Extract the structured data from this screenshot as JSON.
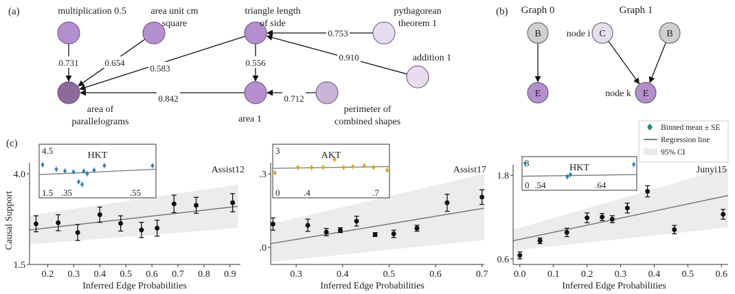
{
  "panel_labels": {
    "a": "(a)",
    "b": "(b)",
    "c": "(c)"
  },
  "graph_a": {
    "nodes": [
      {
        "id": "mult",
        "label_lines": [
          "multiplication 0.5"
        ],
        "color": "#b48fcf"
      },
      {
        "id": "area_unit",
        "label_lines": [
          "area unit cm",
          "square"
        ],
        "color": "#b48fcf"
      },
      {
        "id": "triangle",
        "label_lines": [
          "triangle length",
          "of side"
        ],
        "color": "#b48fcf"
      },
      {
        "id": "pyth",
        "label_lines": [
          "pythagorean",
          "theorem 1"
        ],
        "color": "#e8dcef"
      },
      {
        "id": "addition",
        "label_lines": [
          "addition 1"
        ],
        "color": "#e8dcef"
      },
      {
        "id": "parallelogram",
        "label_lines": [
          "area of",
          "parallelograms"
        ],
        "color": "#8c6a99"
      },
      {
        "id": "area1",
        "label_lines": [
          "area 1"
        ],
        "color": "#b48fcf"
      },
      {
        "id": "perimeter",
        "label_lines": [
          "perimeter of",
          "combined shapes"
        ],
        "color": "#c9b3d9"
      }
    ],
    "edges": [
      {
        "from": "mult",
        "to": "parallelogram",
        "weight": "0.731"
      },
      {
        "from": "area_unit",
        "to": "parallelogram",
        "weight": "0.654"
      },
      {
        "from": "triangle",
        "to": "parallelogram",
        "weight": "0.583"
      },
      {
        "from": "triangle",
        "to": "area1",
        "weight": "0.556"
      },
      {
        "from": "area1",
        "to": "parallelogram",
        "weight": "0.842"
      },
      {
        "from": "pyth",
        "to": "triangle",
        "weight": "0.753"
      },
      {
        "from": "addition",
        "to": "triangle",
        "weight": "0.910"
      },
      {
        "from": "perimeter",
        "to": "area1",
        "weight": "0.712"
      }
    ]
  },
  "graph_b": {
    "titles": [
      "Graph 0",
      "Graph 1"
    ],
    "nodes": [
      {
        "id": "g0B",
        "letter": "B",
        "color": "#cfcfcf"
      },
      {
        "id": "g0E",
        "letter": "E",
        "color": "#b48fcf"
      },
      {
        "id": "g1C",
        "letter": "C",
        "color": "#e8dcef",
        "side_label": "node i"
      },
      {
        "id": "g1B",
        "letter": "B",
        "color": "#cfcfcf"
      },
      {
        "id": "g1E",
        "letter": "E",
        "color": "#b48fcf",
        "side_label": "node k"
      }
    ],
    "edges": [
      {
        "from": "g0B",
        "to": "g0E"
      },
      {
        "from": "g1C",
        "to": "g1E"
      },
      {
        "from": "g1B",
        "to": "g1E"
      }
    ]
  },
  "legend": {
    "binned": "Binned mean ± SE",
    "regression": "Regression line",
    "ci": "95% CI",
    "marker_color": "#1a8f86"
  },
  "chart_data": [
    {
      "type": "scatter",
      "dataset": "Assist12",
      "xlabel": "Inferred Edge Probabilities",
      "ylabel": "Causal Support",
      "xticks": [
        "0.2",
        "0.3",
        "0.4",
        "0.5",
        "0.6",
        "0.7",
        "0.8",
        "0.9"
      ],
      "yticks": [
        "1.5",
        "4.0"
      ],
      "xlim": [
        0.13,
        0.94
      ],
      "ylim": [
        1.5,
        4.3
      ],
      "points": [
        {
          "x": 0.155,
          "y": 2.62,
          "se": 0.22
        },
        {
          "x": 0.24,
          "y": 2.65,
          "se": 0.22
        },
        {
          "x": 0.315,
          "y": 2.38,
          "se": 0.22
        },
        {
          "x": 0.4,
          "y": 2.87,
          "se": 0.21
        },
        {
          "x": 0.48,
          "y": 2.63,
          "se": 0.21
        },
        {
          "x": 0.56,
          "y": 2.45,
          "se": 0.21
        },
        {
          "x": 0.62,
          "y": 2.5,
          "se": 0.22
        },
        {
          "x": 0.685,
          "y": 3.17,
          "se": 0.24
        },
        {
          "x": 0.77,
          "y": 3.13,
          "se": 0.22
        },
        {
          "x": 0.91,
          "y": 3.2,
          "se": 0.25
        }
      ],
      "regression": [
        [
          0.13,
          2.45
        ],
        [
          0.93,
          3.1
        ]
      ],
      "ci_upper": [
        [
          0.13,
          2.85
        ],
        [
          0.93,
          3.7
        ]
      ],
      "ci_lower": [
        [
          0.13,
          2.05
        ],
        [
          0.93,
          2.5
        ]
      ],
      "inset": {
        "label": "HKT",
        "color": "#2d7fb3",
        "xticks": [
          ".35",
          ".55"
        ],
        "yticks": [
          "1.5",
          "4.5"
        ],
        "xlim": [
          0.27,
          0.61
        ],
        "ylim": [
          1.5,
          4.5
        ],
        "points": [
          [
            0.28,
            3.35
          ],
          [
            0.32,
            3.1
          ],
          [
            0.345,
            3.0
          ],
          [
            0.37,
            2.95
          ],
          [
            0.385,
            2.4
          ],
          [
            0.395,
            2.25
          ],
          [
            0.4,
            3.0
          ],
          [
            0.41,
            2.85
          ],
          [
            0.43,
            3.05
          ],
          [
            0.46,
            3.3
          ],
          [
            0.6,
            3.3
          ]
        ],
        "regression": [
          [
            0.27,
            2.8
          ],
          [
            0.61,
            3.1
          ]
        ]
      }
    },
    {
      "type": "scatter",
      "dataset": "Assist17",
      "xlabel": "Inferred Edge Probabilities",
      "ylabel": "",
      "xticks": [
        "0.3",
        "0.4",
        "0.5",
        "0.6",
        "0.7"
      ],
      "yticks": [
        ".0",
        ".3"
      ],
      "xlim": [
        0.245,
        0.705
      ],
      "ylim": [
        -0.07,
        0.345
      ],
      "points": [
        {
          "x": 0.25,
          "y": 0.095,
          "se": 0.025
        },
        {
          "x": 0.325,
          "y": 0.09,
          "se": 0.025
        },
        {
          "x": 0.365,
          "y": 0.062,
          "se": 0.015
        },
        {
          "x": 0.395,
          "y": 0.07,
          "se": 0.01
        },
        {
          "x": 0.43,
          "y": 0.107,
          "se": 0.02
        },
        {
          "x": 0.47,
          "y": 0.052,
          "se": 0.008
        },
        {
          "x": 0.51,
          "y": 0.055,
          "se": 0.015
        },
        {
          "x": 0.56,
          "y": 0.078,
          "se": 0.012
        },
        {
          "x": 0.625,
          "y": 0.182,
          "se": 0.035
        },
        {
          "x": 0.7,
          "y": 0.205,
          "se": 0.03
        }
      ],
      "regression": [
        [
          0.245,
          0.015
        ],
        [
          0.705,
          0.16
        ]
      ],
      "ci_upper": [
        [
          0.245,
          0.095
        ],
        [
          0.705,
          0.3
        ]
      ],
      "ci_lower": [
        [
          0.245,
          -0.06
        ],
        [
          0.705,
          0.03
        ]
      ],
      "inset": {
        "label": "AKT",
        "color": "#e0a21a",
        "xticks": [
          ".4",
          ".7"
        ],
        "yticks": [
          "0",
          "3"
        ],
        "xlim": [
          0.25,
          0.76
        ],
        "ylim": [
          0,
          3
        ],
        "points": [
          [
            0.26,
            1.4
          ],
          [
            0.36,
            1.7
          ],
          [
            0.42,
            1.7
          ],
          [
            0.47,
            1.7
          ],
          [
            0.52,
            2.15
          ],
          [
            0.56,
            1.7
          ],
          [
            0.6,
            1.75
          ],
          [
            0.65,
            1.8
          ],
          [
            0.69,
            1.7
          ],
          [
            0.75,
            1.55
          ]
        ],
        "regression": [
          [
            0.25,
            1.65
          ],
          [
            0.76,
            1.75
          ]
        ]
      }
    },
    {
      "type": "scatter",
      "dataset": "Junyi15",
      "xlabel": "Inferred Edge Probabilities",
      "ylabel": "",
      "xticks": [
        "0.0",
        "0.1",
        "0.2",
        "0.3",
        "0.4",
        "0.5",
        "0.6"
      ],
      "yticks": [
        "0.6",
        "1.8"
      ],
      "xlim": [
        -0.02,
        0.62
      ],
      "ylim": [
        0.52,
        1.95
      ],
      "points": [
        {
          "x": 0.0,
          "y": 0.65,
          "se": 0.05
        },
        {
          "x": 0.06,
          "y": 0.86,
          "se": 0.04
        },
        {
          "x": 0.14,
          "y": 0.98,
          "se": 0.06
        },
        {
          "x": 0.2,
          "y": 1.19,
          "se": 0.07
        },
        {
          "x": 0.245,
          "y": 1.2,
          "se": 0.05
        },
        {
          "x": 0.275,
          "y": 1.17,
          "se": 0.05
        },
        {
          "x": 0.32,
          "y": 1.33,
          "se": 0.07
        },
        {
          "x": 0.38,
          "y": 1.57,
          "se": 0.08
        },
        {
          "x": 0.46,
          "y": 1.02,
          "se": 0.06
        },
        {
          "x": 0.605,
          "y": 1.24,
          "se": 0.07
        }
      ],
      "regression": [
        [
          -0.02,
          0.86
        ],
        [
          0.62,
          1.51
        ]
      ],
      "ci_upper": [
        [
          -0.02,
          1.02
        ],
        [
          0.62,
          2.02
        ]
      ],
      "ci_lower": [
        [
          -0.02,
          0.72
        ],
        [
          0.62,
          1.05
        ]
      ],
      "inset": {
        "label": "HKT",
        "color": "#2d7fb3",
        "xticks": [
          ".54",
          ".64"
        ],
        "yticks": [
          "0",
          "3"
        ],
        "xlim": [
          0.51,
          0.7
        ],
        "ylim": [
          0,
          3
        ],
        "points": [
          [
            0.515,
            2.4
          ],
          [
            0.585,
            1.2
          ],
          [
            0.59,
            1.4
          ],
          [
            0.695,
            2.3
          ]
        ],
        "regression": [
          [
            0.51,
            1.25
          ],
          [
            0.7,
            1.4
          ]
        ]
      }
    }
  ]
}
